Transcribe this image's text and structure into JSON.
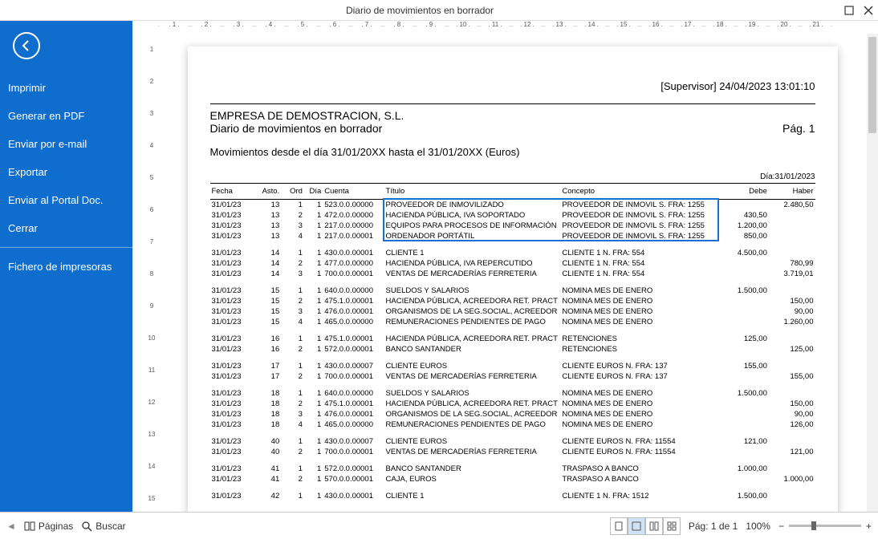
{
  "window": {
    "title": "Diario de movimientos en borrador"
  },
  "sidebar": {
    "items": [
      {
        "label": "Imprimir"
      },
      {
        "label": "Generar en PDF"
      },
      {
        "label": "Enviar por e-mail"
      },
      {
        "label": "Exportar"
      },
      {
        "label": "Enviar al Portal Doc."
      },
      {
        "label": "Cerrar"
      }
    ],
    "footer": {
      "label": "Fichero de impresoras"
    }
  },
  "status": {
    "paginas": "Páginas",
    "buscar": "Buscar",
    "pag_label": "Pág: 1 de 1",
    "zoom_label": "100%"
  },
  "report": {
    "user_ts": "[Supervisor] 24/04/2023 13:01:10",
    "company": "EMPRESA DE DEMOSTRACION, S.L.",
    "subtitle": "Diario de movimientos en borrador",
    "page_label": "Pág. 1",
    "range": "Movimientos desde el día 31/01/20XX hasta el 31/01/20XX (Euros)",
    "dia_right": "Día:31/01/2023",
    "columns": {
      "fecha": "Fecha",
      "asto": "Asto.",
      "ord": "Ord",
      "dia": "Día",
      "cuenta": "Cuenta",
      "titulo": "Título",
      "concepto": "Concepto",
      "debe": "Debe",
      "haber": "Haber"
    },
    "groups": [
      {
        "highlight": true,
        "rows": [
          {
            "fecha": "31/01/23",
            "asto": "13",
            "ord": "1",
            "dia": "1",
            "cuenta": "523.0.0.00000",
            "titulo": "PROVEEDOR DE INMOVILIZADO",
            "concepto": "PROVEEDOR DE INMOVIL S. FRA:  1255",
            "debe": "",
            "haber": "2.480,50"
          },
          {
            "fecha": "31/01/23",
            "asto": "13",
            "ord": "2",
            "dia": "1",
            "cuenta": "472.0.0.00000",
            "titulo": "HACIENDA PÚBLICA, IVA SOPORTADO",
            "concepto": "PROVEEDOR DE INMOVIL S. FRA:  1255",
            "debe": "430,50",
            "haber": ""
          },
          {
            "fecha": "31/01/23",
            "asto": "13",
            "ord": "3",
            "dia": "1",
            "cuenta": "217.0.0.00000",
            "titulo": "EQUIPOS PARA PROCESOS DE INFORMACIÓN",
            "concepto": "PROVEEDOR DE INMOVIL S. FRA:  1255",
            "debe": "1.200,00",
            "haber": ""
          },
          {
            "fecha": "31/01/23",
            "asto": "13",
            "ord": "4",
            "dia": "1",
            "cuenta": "217.0.0.00001",
            "titulo": "ORDENADOR PORTÁTIL",
            "concepto": "PROVEEDOR DE INMOVIL S. FRA:  1255",
            "debe": "850,00",
            "haber": ""
          }
        ]
      },
      {
        "rows": [
          {
            "fecha": "31/01/23",
            "asto": "14",
            "ord": "1",
            "dia": "1",
            "cuenta": "430.0.0.00001",
            "titulo": "CLIENTE 1",
            "concepto": "CLIENTE 1 N. FRA:   554",
            "debe": "4.500,00",
            "haber": ""
          },
          {
            "fecha": "31/01/23",
            "asto": "14",
            "ord": "2",
            "dia": "1",
            "cuenta": "477.0.0.00000",
            "titulo": "HACIENDA PÚBLICA, IVA REPERCUTIDO",
            "concepto": "CLIENTE 1 N. FRA:   554",
            "debe": "",
            "haber": "780,99"
          },
          {
            "fecha": "31/01/23",
            "asto": "14",
            "ord": "3",
            "dia": "1",
            "cuenta": "700.0.0.00001",
            "titulo": "VENTAS DE MERCADERÍAS FERRETERIA",
            "concepto": "CLIENTE 1 N. FRA:   554",
            "debe": "",
            "haber": "3.719,01"
          }
        ]
      },
      {
        "rows": [
          {
            "fecha": "31/01/23",
            "asto": "15",
            "ord": "1",
            "dia": "1",
            "cuenta": "640.0.0.00000",
            "titulo": "SUELDOS Y SALARIOS",
            "concepto": "NOMINA MES DE  ENERO",
            "debe": "1.500,00",
            "haber": ""
          },
          {
            "fecha": "31/01/23",
            "asto": "15",
            "ord": "2",
            "dia": "1",
            "cuenta": "475.1.0.00001",
            "titulo": "HACIENDA PÚBLICA, ACREEDORA RET. PRACT",
            "concepto": "NOMINA MES DE  ENERO",
            "debe": "",
            "haber": "150,00"
          },
          {
            "fecha": "31/01/23",
            "asto": "15",
            "ord": "3",
            "dia": "1",
            "cuenta": "476.0.0.00001",
            "titulo": "ORGANISMOS DE LA SEG.SOCIAL, ACREEDOR",
            "concepto": "NOMINA MES DE  ENERO",
            "debe": "",
            "haber": "90,00"
          },
          {
            "fecha": "31/01/23",
            "asto": "15",
            "ord": "4",
            "dia": "1",
            "cuenta": "465.0.0.00000",
            "titulo": "REMUNERACIONES PENDIENTES DE PAGO",
            "concepto": "NOMINA MES DE  ENERO",
            "debe": "",
            "haber": "1.260,00"
          }
        ]
      },
      {
        "rows": [
          {
            "fecha": "31/01/23",
            "asto": "16",
            "ord": "1",
            "dia": "1",
            "cuenta": "475.1.0.00001",
            "titulo": "HACIENDA PÚBLICA, ACREEDORA RET. PRACT",
            "concepto": "RETENCIONES",
            "debe": "125,00",
            "haber": ""
          },
          {
            "fecha": "31/01/23",
            "asto": "16",
            "ord": "2",
            "dia": "1",
            "cuenta": "572.0.0.00001",
            "titulo": "BANCO SANTANDER",
            "concepto": "RETENCIONES",
            "debe": "",
            "haber": "125,00"
          }
        ]
      },
      {
        "rows": [
          {
            "fecha": "31/01/23",
            "asto": "17",
            "ord": "1",
            "dia": "1",
            "cuenta": "430.0.0.00007",
            "titulo": "CLIENTE EUROS",
            "concepto": "CLIENTE EUROS N. FRA:   137",
            "debe": "155,00",
            "haber": ""
          },
          {
            "fecha": "31/01/23",
            "asto": "17",
            "ord": "2",
            "dia": "1",
            "cuenta": "700.0.0.00001",
            "titulo": "VENTAS DE MERCADERÍAS FERRETERIA",
            "concepto": "CLIENTE EUROS N. FRA:   137",
            "debe": "",
            "haber": "155,00"
          }
        ]
      },
      {
        "rows": [
          {
            "fecha": "31/01/23",
            "asto": "18",
            "ord": "1",
            "dia": "1",
            "cuenta": "640.0.0.00000",
            "titulo": "SUELDOS Y SALARIOS",
            "concepto": "NOMINA MES DE  ENERO",
            "debe": "1.500,00",
            "haber": ""
          },
          {
            "fecha": "31/01/23",
            "asto": "18",
            "ord": "2",
            "dia": "1",
            "cuenta": "475.1.0.00001",
            "titulo": "HACIENDA PÚBLICA, ACREEDORA RET. PRACT",
            "concepto": "NOMINA MES DE  ENERO",
            "debe": "",
            "haber": "150,00"
          },
          {
            "fecha": "31/01/23",
            "asto": "18",
            "ord": "3",
            "dia": "1",
            "cuenta": "476.0.0.00001",
            "titulo": "ORGANISMOS DE LA SEG.SOCIAL, ACREEDOR",
            "concepto": "NOMINA MES DE  ENERO",
            "debe": "",
            "haber": "90,00"
          },
          {
            "fecha": "31/01/23",
            "asto": "18",
            "ord": "4",
            "dia": "1",
            "cuenta": "465.0.0.00000",
            "titulo": "REMUNERACIONES PENDIENTES DE PAGO",
            "concepto": "NOMINA MES DE  ENERO",
            "debe": "",
            "haber": "126,00"
          }
        ]
      },
      {
        "rows": [
          {
            "fecha": "31/01/23",
            "asto": "40",
            "ord": "1",
            "dia": "1",
            "cuenta": "430.0.0.00007",
            "titulo": "CLIENTE EUROS",
            "concepto": "CLIENTE EUROS N. FRA:   11554",
            "debe": "121,00",
            "haber": ""
          },
          {
            "fecha": "31/01/23",
            "asto": "40",
            "ord": "2",
            "dia": "1",
            "cuenta": "700.0.0.00001",
            "titulo": "VENTAS DE MERCADERÍAS FERRETERIA",
            "concepto": "CLIENTE EUROS N. FRA:   11554",
            "debe": "",
            "haber": "121,00"
          }
        ]
      },
      {
        "rows": [
          {
            "fecha": "31/01/23",
            "asto": "41",
            "ord": "1",
            "dia": "1",
            "cuenta": "572.0.0.00001",
            "titulo": "BANCO SANTANDER",
            "concepto": "TRASPASO A BANCO",
            "debe": "1.000,00",
            "haber": ""
          },
          {
            "fecha": "31/01/23",
            "asto": "41",
            "ord": "2",
            "dia": "1",
            "cuenta": "570.0.0.00001",
            "titulo": "CAJA, EUROS",
            "concepto": "TRASPASO A BANCO",
            "debe": "",
            "haber": "1.000,00"
          }
        ]
      },
      {
        "rows": [
          {
            "fecha": "31/01/23",
            "asto": "42",
            "ord": "1",
            "dia": "1",
            "cuenta": "430.0.0.00001",
            "titulo": "CLIENTE 1",
            "concepto": "CLIENTE 1 N. FRA:   1512",
            "debe": "1.500,00",
            "haber": ""
          }
        ]
      }
    ]
  }
}
